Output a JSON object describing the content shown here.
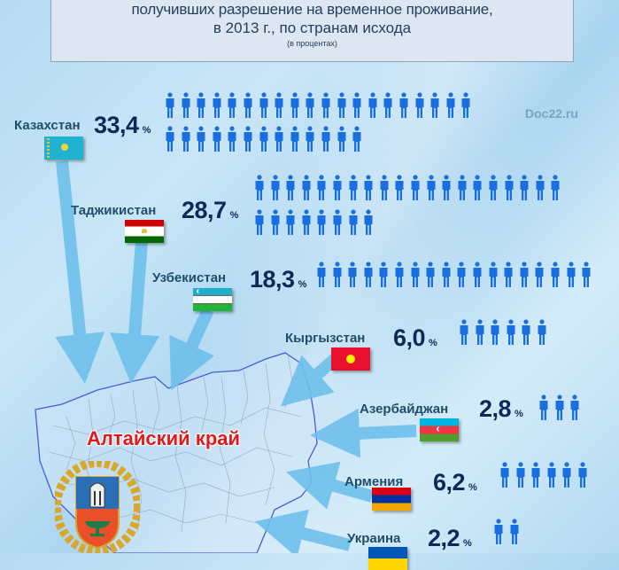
{
  "title": {
    "line1": "получивших разрешение на временное проживание,",
    "line2": "в 2013 г., по странам исхода",
    "line3": "(в процентах)"
  },
  "watermark": "Doc22.ru",
  "region_label": "Алтайский край",
  "percent_sign": "%",
  "colors": {
    "figure": "#1a6fe0",
    "arrow": "#6ec0ec",
    "pct_text": "#0d2a57",
    "country_text": "#1f4e6a",
    "region_text": "#e2191b",
    "map_border": "#4a5bd8"
  },
  "countries": [
    {
      "name": "Казахстан",
      "value": "33,4",
      "figures": [
        20,
        13
      ],
      "flag": "kazakhstan"
    },
    {
      "name": "Таджикистан",
      "value": "28,7",
      "figures": [
        20,
        8
      ],
      "flag": "tajikistan"
    },
    {
      "name": "Узбекистан",
      "value": "18,3",
      "figures": [
        18
      ],
      "flag": "uzbekistan"
    },
    {
      "name": "Кыргызстан",
      "value": "6,0",
      "figures": [
        6
      ],
      "flag": "kyrgyzstan"
    },
    {
      "name": "Азербайджан",
      "value": "2,8",
      "figures": [
        3
      ],
      "flag": "azerbaijan"
    },
    {
      "name": "Армения",
      "value": "6,2",
      "figures": [
        6
      ],
      "flag": "armenia"
    },
    {
      "name": "Украина",
      "value": "2,2",
      "figures": [
        2
      ],
      "flag": "ukraine"
    }
  ],
  "chart_data": {
    "type": "bar",
    "title": "...получивших разрешение на временное проживание, в 2013 г., по странам исхода (в процентах)",
    "subtitle": "(в процентах)",
    "categories": [
      "Казахстан",
      "Таджикистан",
      "Узбекистан",
      "Кыргызстан",
      "Азербайджан",
      "Армения",
      "Украина"
    ],
    "values": [
      33.4,
      28.7,
      18.3,
      6.0,
      2.8,
      6.2,
      2.2
    ],
    "unit": "%",
    "destination": "Алтайский край",
    "representation": "pictogram (one person icon ≈ 1%)",
    "xlabel": "",
    "ylabel": "%"
  }
}
